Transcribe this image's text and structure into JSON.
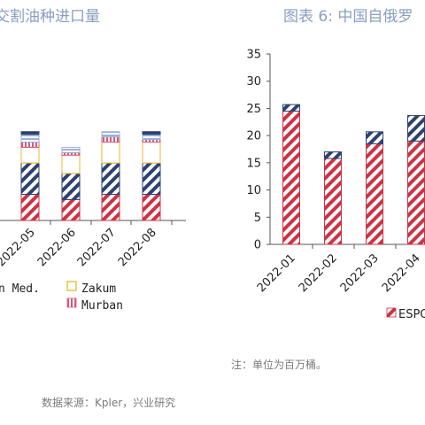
{
  "left_panel": {
    "title": "交割油种进口量",
    "legend": [
      {
        "label": "n Med.",
        "pattern": "none"
      },
      {
        "label": "Zakum",
        "pattern": "yellow-outline"
      },
      {
        "label": "Murban",
        "pattern": "pink-stripe"
      }
    ],
    "source": "数据来源：Kpler，兴业研究"
  },
  "right_panel": {
    "title": "图表 6:   中国自俄罗",
    "note": "注：单位为百万桶。",
    "legend": [
      {
        "label": "ESPO",
        "pattern": "red-diagonal"
      }
    ]
  },
  "colors": {
    "red_stripe": "#cc3344",
    "navy_stripe": "#2e4270",
    "yellow": "#e8b830",
    "pink": "#d85a7a",
    "light_blue": "#9ab2d8",
    "title": "#8a9ec0"
  },
  "chart_data": [
    {
      "type": "bar",
      "stacked": true,
      "categories": [
        "2022-05",
        "2022-06",
        "2022-07",
        "2022-08"
      ],
      "series": [
        {
          "values": [
            5,
            4,
            5,
            5
          ]
        },
        {
          "values": [
            6,
            5,
            6,
            6
          ]
        },
        {
          "values": [
            3,
            3.5,
            4,
            4
          ]
        },
        {
          "values": [
            1,
            0.5,
            1,
            0.5
          ]
        },
        {
          "values": [
            1.5,
            1,
            1,
            1
          ]
        },
        {
          "values": [
            0.5,
            0,
            0,
            0.5
          ]
        }
      ]
    },
    {
      "type": "bar",
      "stacked": true,
      "categories": [
        "2022-01",
        "2022-02",
        "2022-03",
        "2022-04"
      ],
      "ylim": [
        0,
        35
      ],
      "yticks": [
        "0",
        "5",
        "10",
        "15",
        "20",
        "25",
        "30",
        "35"
      ],
      "series": [
        {
          "name": "ESPO",
          "values": [
            24.5,
            15.8,
            18.5,
            19
          ]
        },
        {
          "values": [
            1.2,
            1.2,
            2.2,
            4.7
          ]
        }
      ]
    }
  ]
}
